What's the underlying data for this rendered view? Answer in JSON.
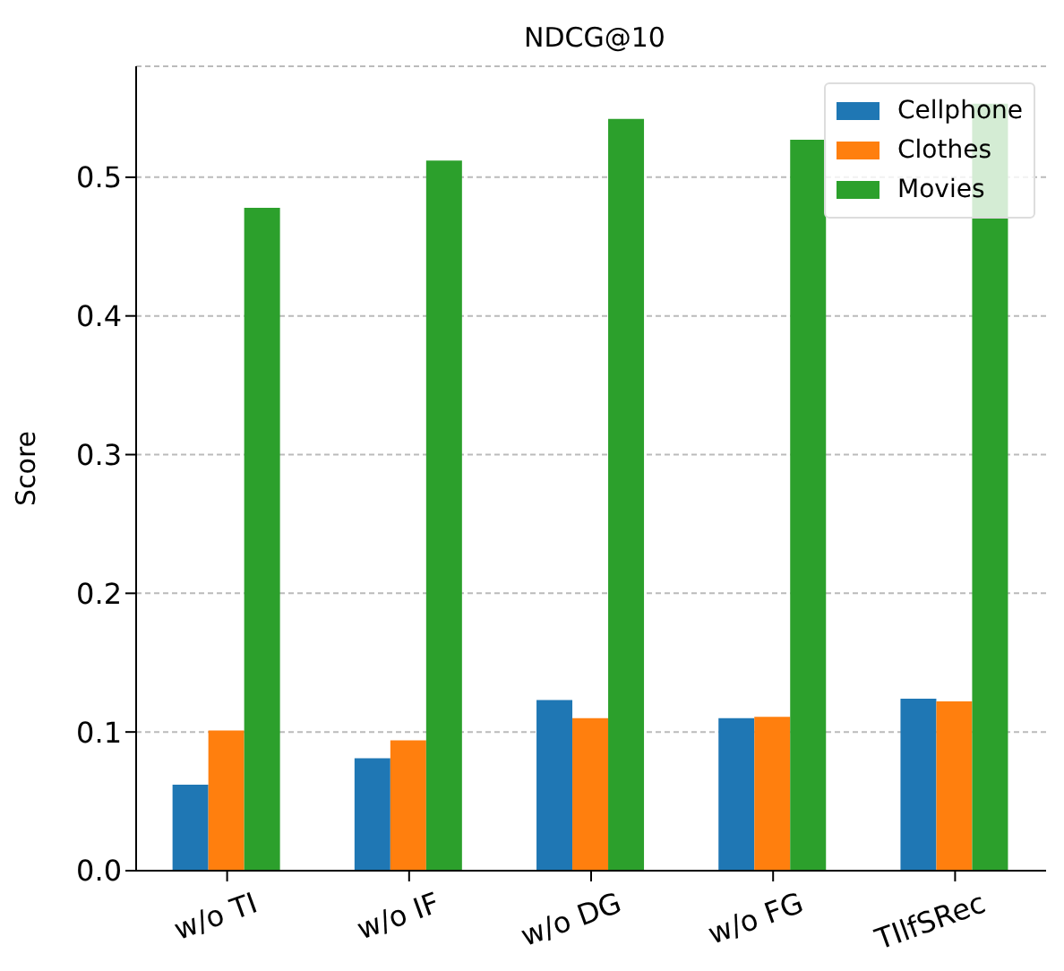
{
  "chart_data": {
    "type": "bar",
    "title": "NDCG@10",
    "ylabel": "Score",
    "categories": [
      "w/o TI",
      "w/o IF",
      "w/o DG",
      "w/o FG",
      "TIlfSRec"
    ],
    "series": [
      {
        "name": "Cellphone",
        "color": "#1f77b4",
        "values": [
          0.062,
          0.081,
          0.123,
          0.11,
          0.124
        ]
      },
      {
        "name": "Clothes",
        "color": "#ff7f0e",
        "values": [
          0.101,
          0.094,
          0.11,
          0.111,
          0.122
        ]
      },
      {
        "name": "Movies",
        "color": "#2ca02c",
        "values": [
          0.478,
          0.512,
          0.542,
          0.527,
          0.553
        ]
      }
    ],
    "ylim": [
      0,
      0.58
    ],
    "yticks": [
      {
        "value": 0,
        "label": "0.0"
      },
      0.1,
      0.2,
      0.3,
      0.4,
      0.5
    ],
    "grid": "y",
    "legend": "top right"
  }
}
